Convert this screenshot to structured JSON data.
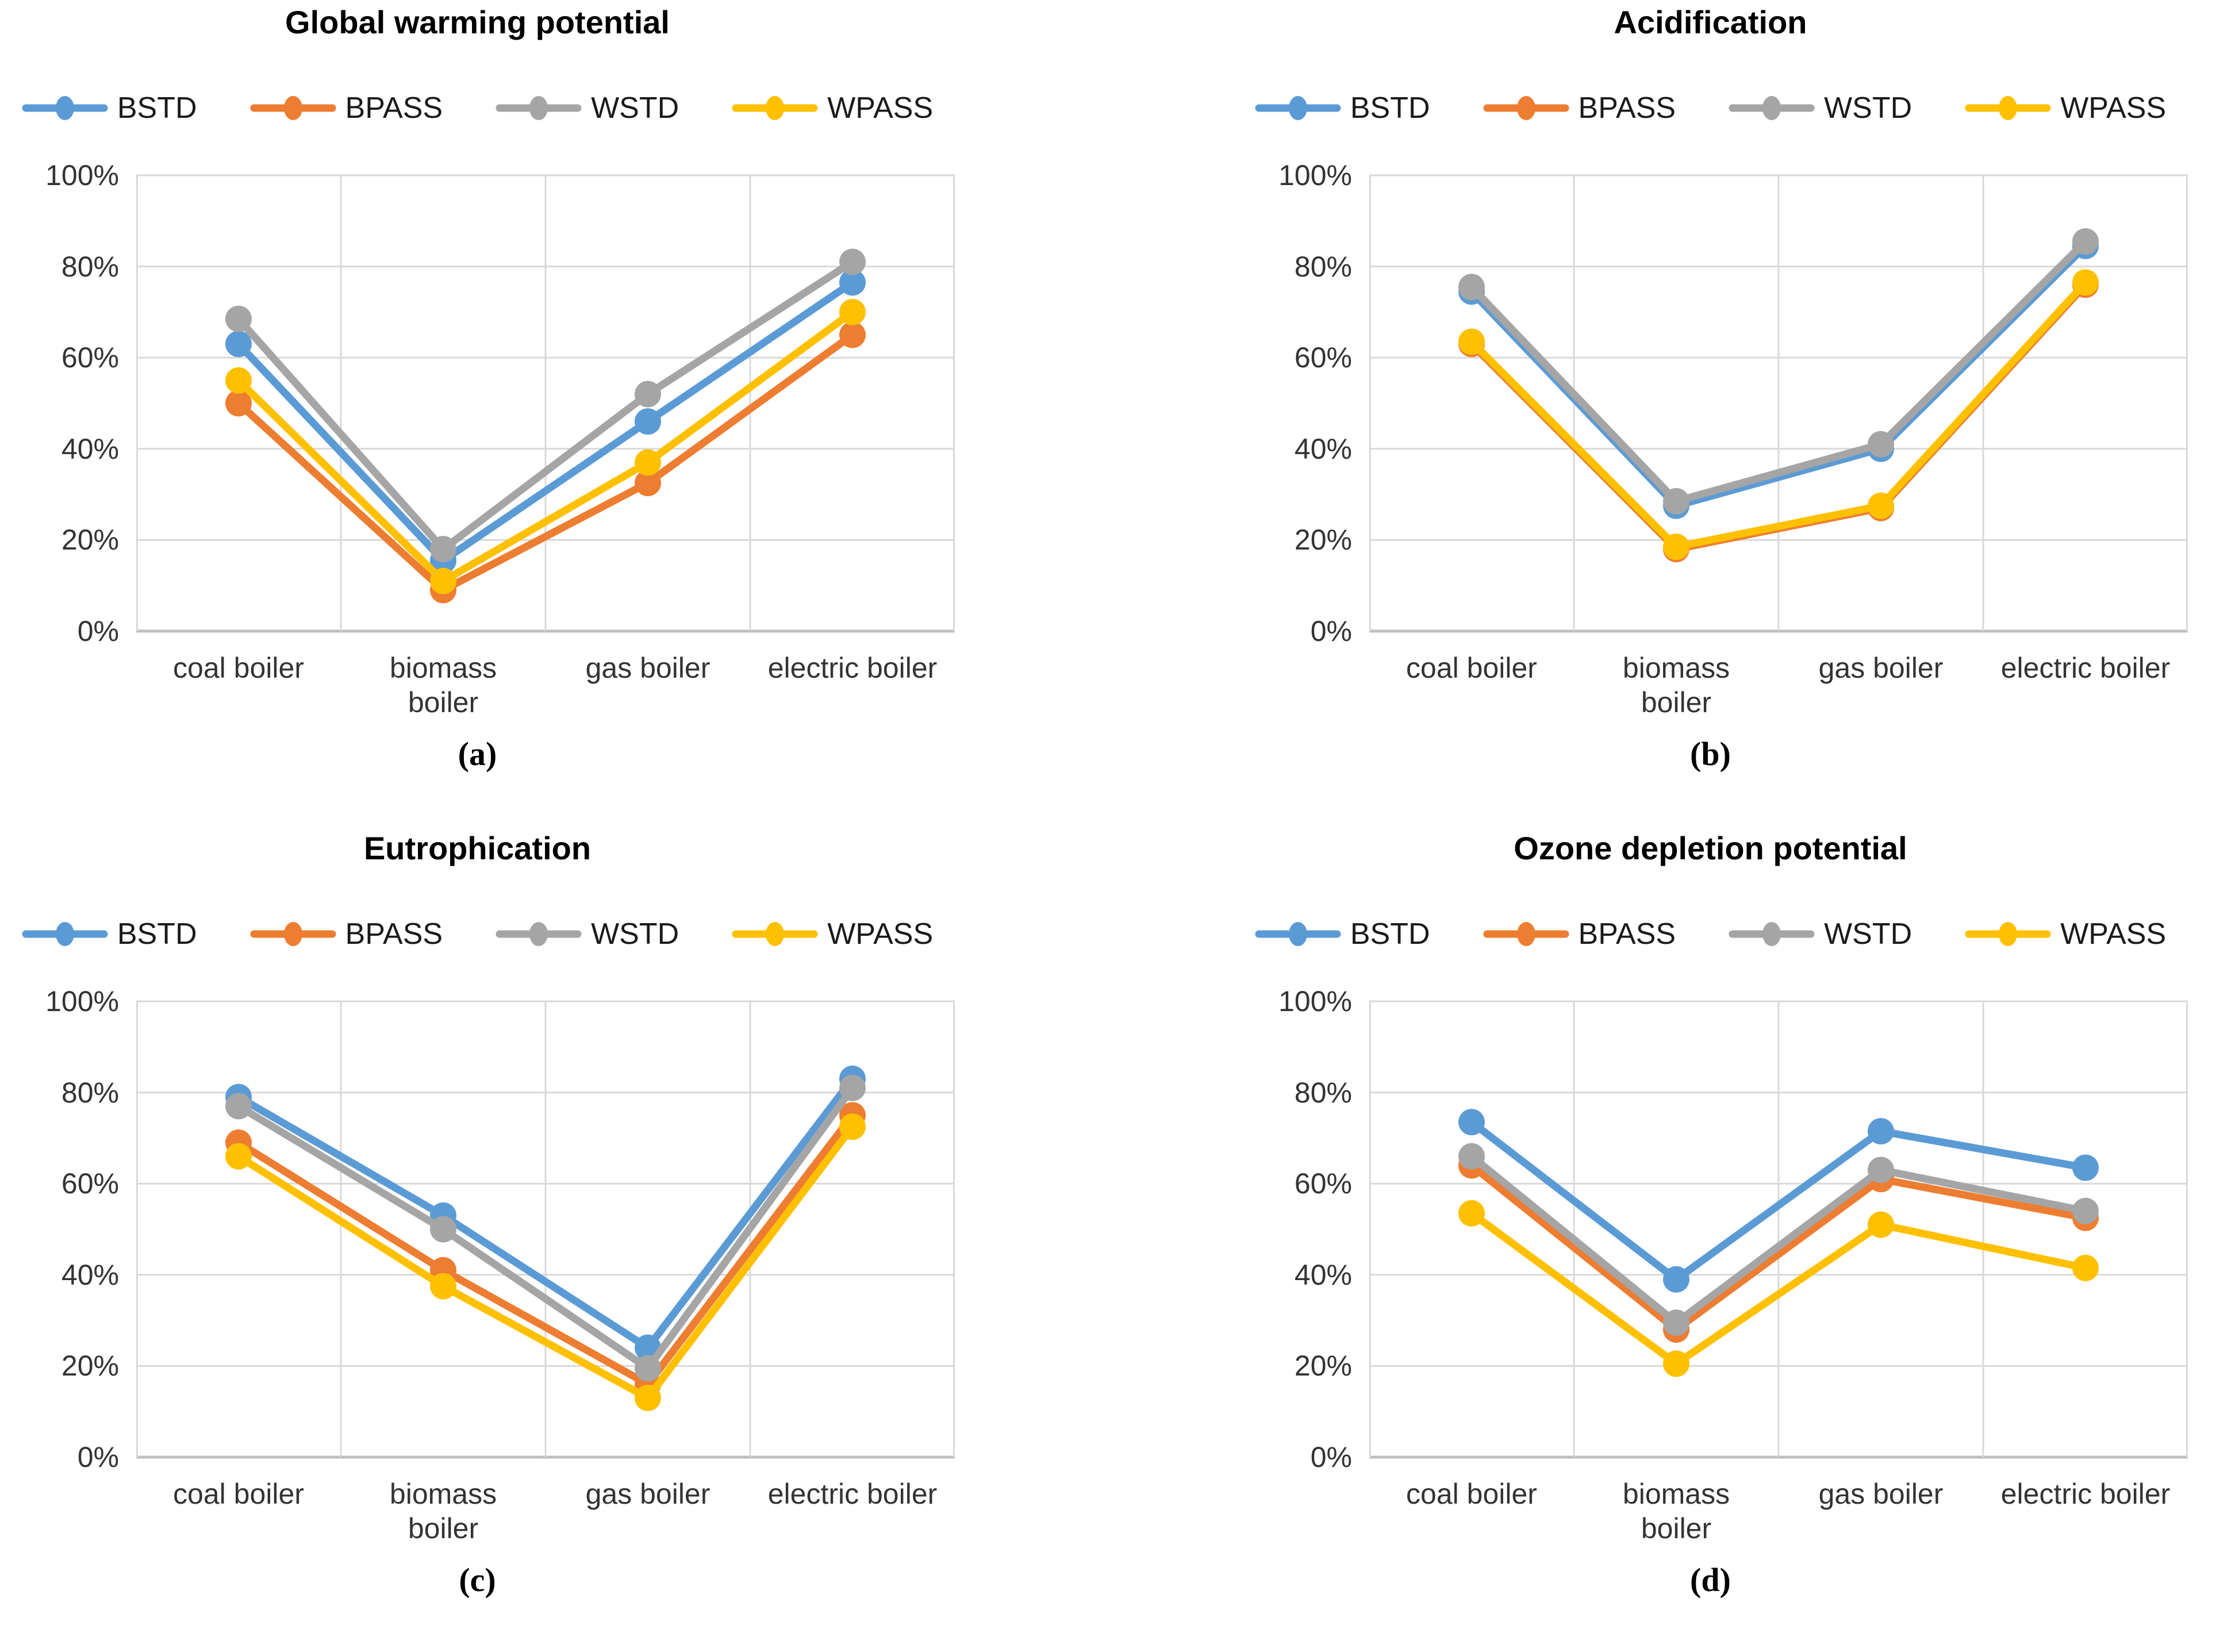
{
  "figure": {
    "background_color": "#FFFFFF",
    "grid_color": "#D9D9D9",
    "axis_line_color": "#BFBFBF",
    "text_color": "#333333",
    "title_color": "#000000"
  },
  "chart_data": [
    {
      "type": "line",
      "panel": "a",
      "title": "Global warming potential",
      "caption": "(a)",
      "legend_position": "top",
      "grid": true,
      "ylim": [
        0,
        100
      ],
      "ytick_labels": [
        "100%",
        "80%",
        "60%",
        "40%",
        "20%",
        "0%"
      ],
      "categories": [
        "coal boiler",
        "biomass boiler",
        "gas boiler",
        "electric boiler"
      ],
      "series": [
        {
          "name": "BSTD",
          "color": "#5B9BD5",
          "values": [
            63,
            15.5,
            46,
            76.5
          ]
        },
        {
          "name": "BPASS",
          "color": "#ED7D31",
          "values": [
            50,
            9,
            32.5,
            65
          ]
        },
        {
          "name": "WSTD",
          "color": "#A5A5A5",
          "values": [
            68.5,
            18,
            52,
            81
          ]
        },
        {
          "name": "WPASS",
          "color": "#FFC000",
          "values": [
            55,
            11,
            37,
            70
          ]
        }
      ]
    },
    {
      "type": "line",
      "panel": "b",
      "title": "Acidification",
      "caption": "(b)",
      "legend_position": "top",
      "grid": true,
      "ylim": [
        0,
        100
      ],
      "ytick_labels": [
        "100%",
        "80%",
        "60%",
        "40%",
        "20%",
        "0%"
      ],
      "categories": [
        "coal boiler",
        "biomass boiler",
        "gas boiler",
        "electric boiler"
      ],
      "series": [
        {
          "name": "BSTD",
          "color": "#5B9BD5",
          "values": [
            74.5,
            27.5,
            40,
            84.5
          ]
        },
        {
          "name": "BPASS",
          "color": "#ED7D31",
          "values": [
            63,
            18,
            27,
            76
          ]
        },
        {
          "name": "WSTD",
          "color": "#A5A5A5",
          "values": [
            75.5,
            28.5,
            41,
            85.5
          ]
        },
        {
          "name": "WPASS",
          "color": "#FFC000",
          "values": [
            63.5,
            18.5,
            27.5,
            76.5
          ]
        }
      ]
    },
    {
      "type": "line",
      "panel": "c",
      "title": "Eutrophication",
      "caption": "(c)",
      "legend_position": "top",
      "grid": true,
      "ylim": [
        0,
        100
      ],
      "ytick_labels": [
        "100%",
        "80%",
        "60%",
        "40%",
        "20%",
        "0%"
      ],
      "categories": [
        "coal boiler",
        "biomass boiler",
        "gas boiler",
        "electric boiler"
      ],
      "series": [
        {
          "name": "BSTD",
          "color": "#5B9BD5",
          "values": [
            79,
            53,
            24,
            83
          ]
        },
        {
          "name": "BPASS",
          "color": "#ED7D31",
          "values": [
            69,
            41,
            16,
            75
          ]
        },
        {
          "name": "WSTD",
          "color": "#A5A5A5",
          "values": [
            77,
            50,
            19.5,
            81
          ]
        },
        {
          "name": "WPASS",
          "color": "#FFC000",
          "values": [
            66,
            37.5,
            13,
            72.5
          ]
        }
      ]
    },
    {
      "type": "line",
      "panel": "d",
      "title": "Ozone depletion potential",
      "caption": "(d)",
      "legend_position": "top",
      "grid": true,
      "ylim": [
        0,
        100
      ],
      "ytick_labels": [
        "100%",
        "80%",
        "60%",
        "40%",
        "20%",
        "0%"
      ],
      "categories": [
        "coal boiler",
        "biomass boiler",
        "gas boiler",
        "electric boiler"
      ],
      "series": [
        {
          "name": "BSTD",
          "color": "#5B9BD5",
          "values": [
            73.5,
            39,
            71.5,
            63.5
          ]
        },
        {
          "name": "BPASS",
          "color": "#ED7D31",
          "values": [
            64,
            28,
            61,
            52.5
          ]
        },
        {
          "name": "WSTD",
          "color": "#A5A5A5",
          "values": [
            66,
            29.5,
            63,
            54
          ]
        },
        {
          "name": "WPASS",
          "color": "#FFC000",
          "values": [
            53.5,
            20.5,
            51,
            41.5
          ]
        }
      ]
    }
  ]
}
